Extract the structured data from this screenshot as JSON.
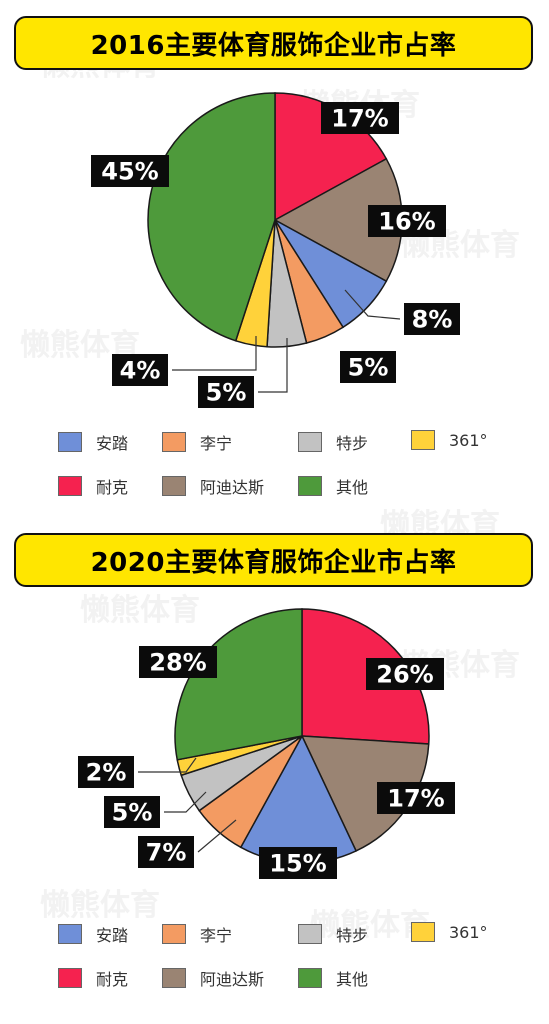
{
  "chart_data": [
    {
      "type": "pie",
      "title": "2016主要体育服饰企业市占率",
      "series": [
        {
          "name": "耐克",
          "value": 17,
          "label": "17%",
          "color": "#f5224f"
        },
        {
          "name": "阿迪达斯",
          "value": 16,
          "label": "16%",
          "color": "#9a8473"
        },
        {
          "name": "安踏",
          "value": 8,
          "label": "8%",
          "color": "#6f8fd8"
        },
        {
          "name": "李宁",
          "value": 5,
          "label": "5%",
          "color": "#f39b62"
        },
        {
          "name": "特步",
          "value": 5,
          "label": "5%",
          "color": "#c2c2c2"
        },
        {
          "name": "361°",
          "value": 4,
          "label": "4%",
          "color": "#ffd23a"
        },
        {
          "name": "其他",
          "value": 45,
          "label": "45%",
          "color": "#4e9a3b"
        }
      ],
      "legend": [
        [
          "安踏",
          "李宁",
          "特步",
          "361°"
        ],
        [
          "耐克",
          "阿迪达斯",
          "其他"
        ]
      ]
    },
    {
      "type": "pie",
      "title": "2020主要体育服饰企业市占率",
      "series": [
        {
          "name": "耐克",
          "value": 26,
          "label": "26%",
          "color": "#f5224f"
        },
        {
          "name": "阿迪达斯",
          "value": 17,
          "label": "17%",
          "color": "#9a8473"
        },
        {
          "name": "安踏",
          "value": 15,
          "label": "15%",
          "color": "#6f8fd8"
        },
        {
          "name": "李宁",
          "value": 7,
          "label": "7%",
          "color": "#f39b62"
        },
        {
          "name": "特步",
          "value": 5,
          "label": "5%",
          "color": "#c2c2c2"
        },
        {
          "name": "361°",
          "value": 2,
          "label": "2%",
          "color": "#ffd23a"
        },
        {
          "name": "其他",
          "value": 28,
          "label": "28%",
          "color": "#4e9a3b"
        }
      ],
      "legend": [
        [
          "安踏",
          "李宁",
          "特步",
          "361°"
        ],
        [
          "耐克",
          "阿迪达斯",
          "其他"
        ]
      ]
    }
  ],
  "watermark": "懒熊体育"
}
